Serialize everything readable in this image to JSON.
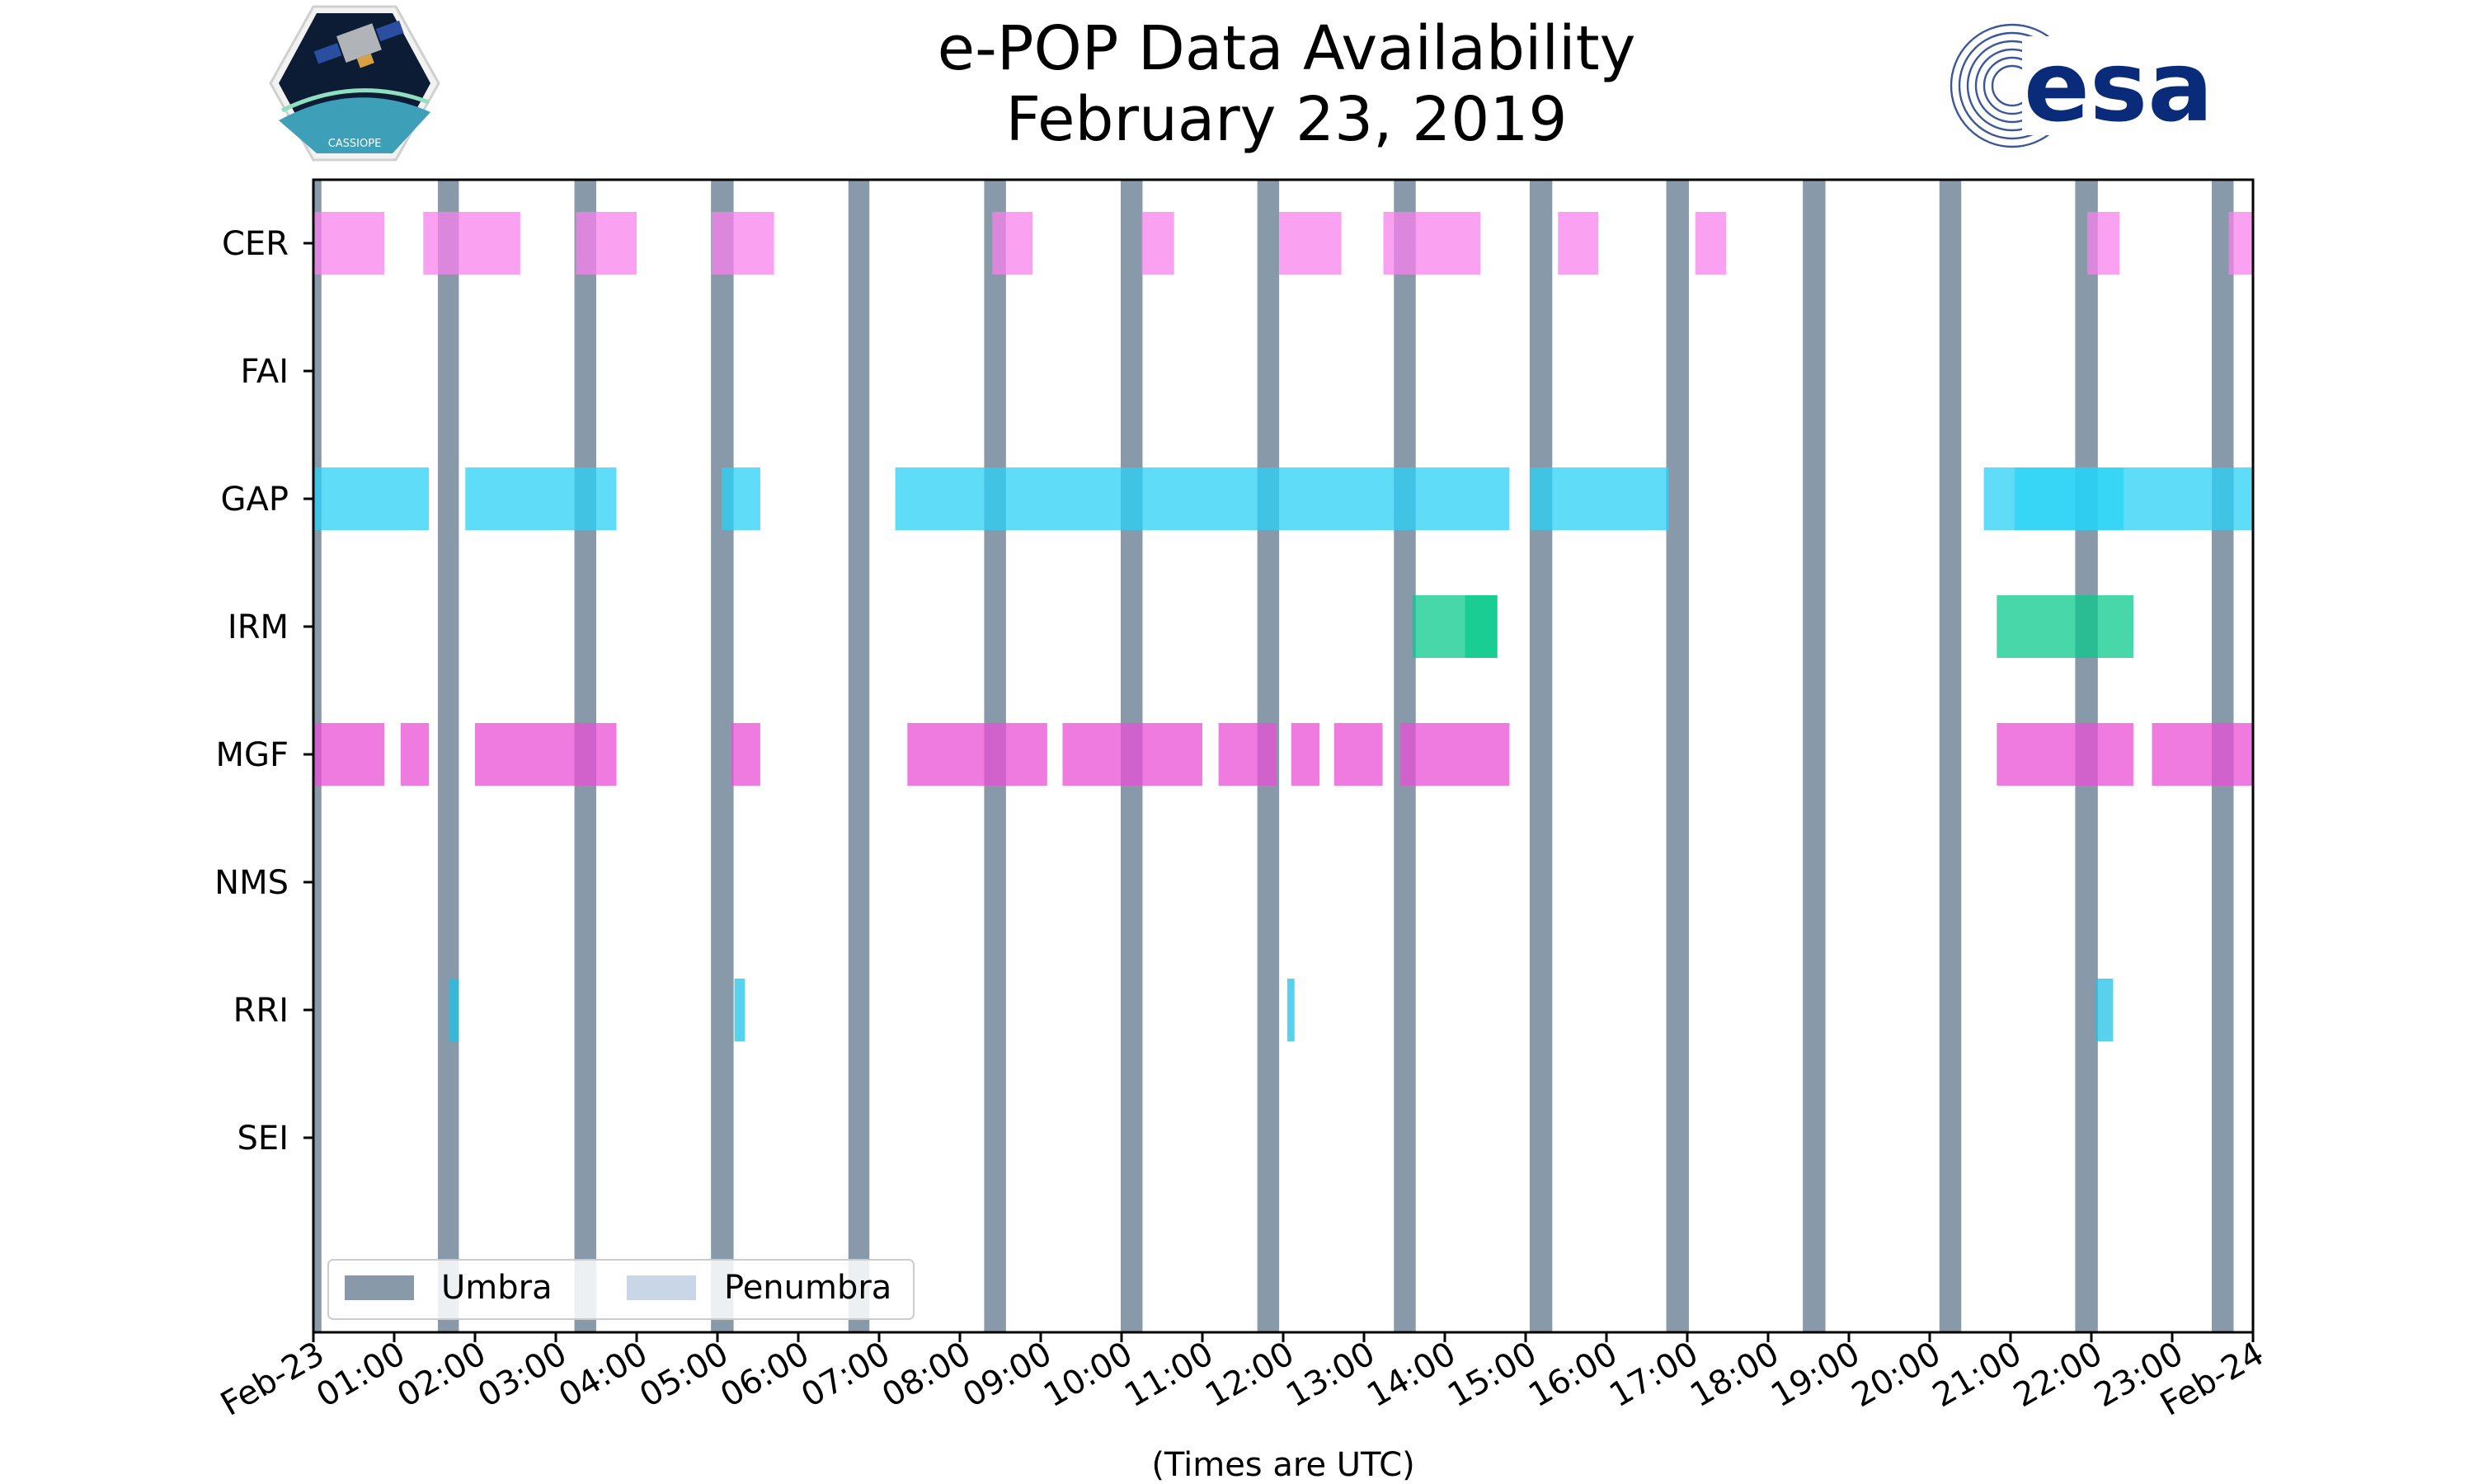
{
  "chart_data": {
    "type": "timeline",
    "title": [
      "e-POP Data Availability",
      "February 23, 2019"
    ],
    "xlabel": "(Times are UTC)",
    "ylabel": "",
    "xlim_hours": [
      0,
      24
    ],
    "x_tick_labels": [
      "Feb-23",
      "01:00",
      "02:00",
      "03:00",
      "04:00",
      "05:00",
      "06:00",
      "07:00",
      "08:00",
      "09:00",
      "10:00",
      "11:00",
      "12:00",
      "13:00",
      "14:00",
      "15:00",
      "16:00",
      "17:00",
      "18:00",
      "19:00",
      "20:00",
      "21:00",
      "22:00",
      "23:00",
      "Feb-24"
    ],
    "instruments": [
      "CER",
      "FAI",
      "GAP",
      "IRM",
      "MGF",
      "NMS",
      "RRI",
      "SEI"
    ],
    "legend": {
      "position": "lower-left",
      "entries": [
        {
          "label": "Umbra",
          "color": "#8899aa"
        },
        {
          "label": "Penumbra",
          "color": "#c8d6e8"
        }
      ]
    },
    "umbra_intervals": [
      [
        0.0,
        0.1
      ],
      [
        1.54,
        1.8
      ],
      [
        3.23,
        3.5
      ],
      [
        4.92,
        5.2
      ],
      [
        6.62,
        6.88
      ],
      [
        8.3,
        8.57
      ],
      [
        9.99,
        10.26
      ],
      [
        11.68,
        11.95
      ],
      [
        13.37,
        13.64
      ],
      [
        15.05,
        15.33
      ],
      [
        16.74,
        17.02
      ],
      [
        18.43,
        18.71
      ],
      [
        20.12,
        20.39
      ],
      [
        21.8,
        22.08
      ],
      [
        23.49,
        23.76
      ]
    ],
    "series": [
      {
        "name": "CER",
        "color": "#fa82ec",
        "intervals": [
          [
            0.0,
            0.88
          ],
          [
            1.36,
            2.56
          ],
          [
            3.25,
            4.0
          ],
          [
            4.93,
            5.7
          ],
          [
            8.4,
            8.9
          ],
          [
            10.25,
            10.65
          ],
          [
            11.95,
            12.72
          ],
          [
            13.24,
            14.44
          ],
          [
            15.4,
            15.9
          ],
          [
            17.1,
            17.48
          ],
          [
            21.95,
            22.35
          ],
          [
            23.7,
            24.0
          ]
        ]
      },
      {
        "name": "FAI",
        "color": "#e58c8c",
        "intervals": []
      },
      {
        "name": "GAP",
        "color": "#29d2f5",
        "intervals": [
          [
            0.0,
            1.43
          ],
          [
            1.88,
            3.75
          ],
          [
            5.05,
            5.53
          ],
          [
            7.2,
            14.8
          ],
          [
            15.05,
            16.77
          ],
          [
            20.67,
            22.4
          ],
          [
            21.05,
            24.0
          ]
        ]
      },
      {
        "name": "IRM",
        "color": "#0bc98c",
        "intervals": [
          [
            13.6,
            14.65
          ],
          [
            14.25,
            14.65
          ],
          [
            20.83,
            22.52
          ]
        ]
      },
      {
        "name": "MGF",
        "color": "#ea4fd6",
        "intervals": [
          [
            0.0,
            0.88
          ],
          [
            1.08,
            1.43
          ],
          [
            2.0,
            3.75
          ],
          [
            5.17,
            5.53
          ],
          [
            7.35,
            9.08
          ],
          [
            9.27,
            11.0
          ],
          [
            11.2,
            11.92
          ],
          [
            12.1,
            12.45
          ],
          [
            12.63,
            13.23
          ],
          [
            13.45,
            14.8
          ],
          [
            20.83,
            22.52
          ],
          [
            22.75,
            24.0
          ]
        ]
      },
      {
        "name": "NMS",
        "color": "#999999",
        "intervals": []
      },
      {
        "name": "RRI",
        "color": "#1fc1e6",
        "intervals": [
          [
            1.68,
            1.8
          ],
          [
            5.21,
            5.34
          ],
          [
            12.05,
            12.14
          ],
          [
            22.05,
            22.27
          ]
        ]
      },
      {
        "name": "SEI",
        "color": "#999999",
        "intervals": []
      }
    ]
  },
  "logos": {
    "left_text": "CASSIOPE",
    "right_text": "esa"
  }
}
